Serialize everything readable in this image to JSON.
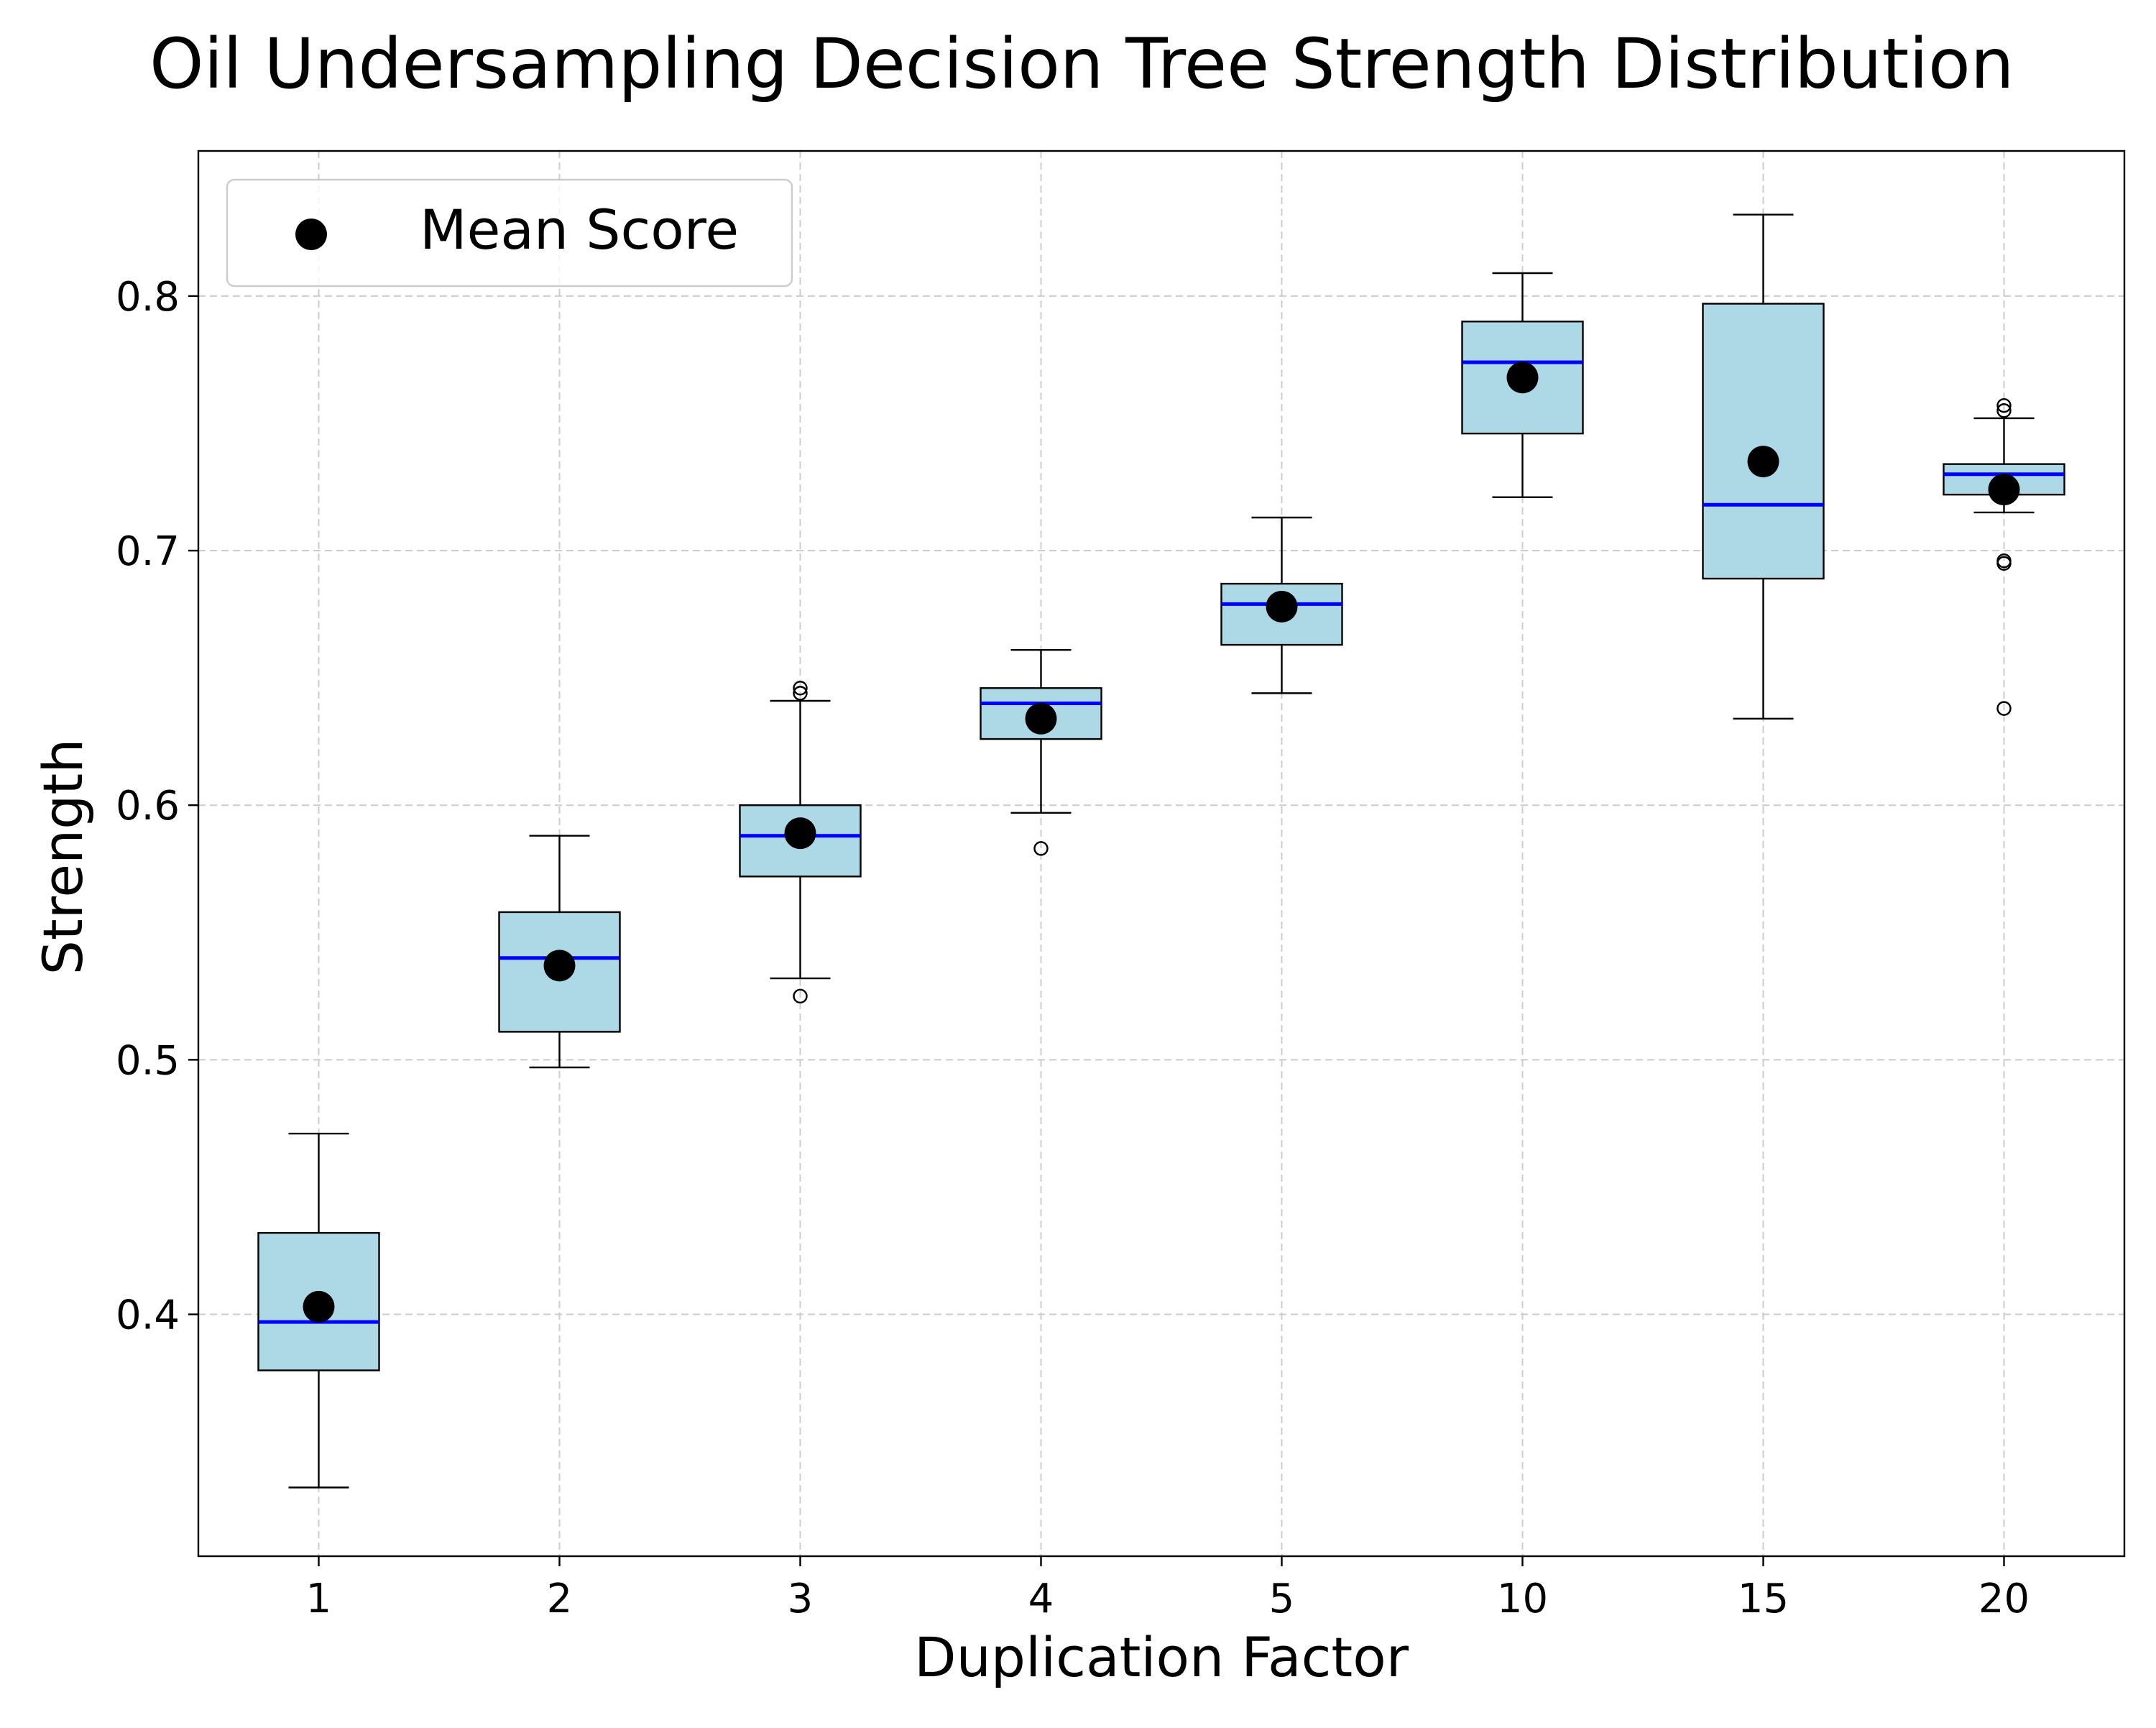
{
  "chart_data": {
    "type": "box",
    "title": "Oil Undersampling Decision Tree Strength Distribution",
    "xlabel": "Duplication Factor",
    "ylabel": "Strength",
    "categories": [
      "1",
      "2",
      "3",
      "4",
      "5",
      "10",
      "15",
      "20"
    ],
    "ylim": [
      0.305,
      0.857
    ],
    "yticks": [
      0.4,
      0.5,
      0.6,
      0.7,
      0.8
    ],
    "ytick_labels": [
      "0.4",
      "0.5",
      "0.6",
      "0.7",
      "0.8"
    ],
    "grid": true,
    "legend": {
      "position": "top-left",
      "entries": [
        "Mean Score"
      ]
    },
    "colors": {
      "box_fill": "#add8e6",
      "median": "#0000ff",
      "mean": "#000000",
      "grid": "#cccccc"
    },
    "boxes": [
      {
        "x": "1",
        "whisker_low": 0.332,
        "q1": 0.378,
        "median": 0.397,
        "q3": 0.432,
        "whisker_high": 0.471,
        "mean": 0.403,
        "outliers": []
      },
      {
        "x": "2",
        "whisker_low": 0.497,
        "q1": 0.511,
        "median": 0.54,
        "q3": 0.558,
        "whisker_high": 0.588,
        "mean": 0.537,
        "outliers": []
      },
      {
        "x": "3",
        "whisker_low": 0.532,
        "q1": 0.572,
        "median": 0.588,
        "q3": 0.6,
        "whisker_high": 0.641,
        "mean": 0.589,
        "outliers": [
          0.525,
          0.644,
          0.646
        ]
      },
      {
        "x": "4",
        "whisker_low": 0.597,
        "q1": 0.626,
        "median": 0.64,
        "q3": 0.646,
        "whisker_high": 0.661,
        "mean": 0.634,
        "outliers": [
          0.583
        ]
      },
      {
        "x": "5",
        "whisker_low": 0.644,
        "q1": 0.663,
        "median": 0.679,
        "q3": 0.687,
        "whisker_high": 0.713,
        "mean": 0.678,
        "outliers": []
      },
      {
        "x": "10",
        "whisker_low": 0.721,
        "q1": 0.746,
        "median": 0.774,
        "q3": 0.79,
        "whisker_high": 0.809,
        "mean": 0.768,
        "outliers": []
      },
      {
        "x": "15",
        "whisker_low": 0.634,
        "q1": 0.689,
        "median": 0.718,
        "q3": 0.797,
        "whisker_high": 0.832,
        "mean": 0.735,
        "outliers": []
      },
      {
        "x": "20",
        "whisker_low": 0.715,
        "q1": 0.722,
        "median": 0.73,
        "q3": 0.734,
        "whisker_high": 0.752,
        "mean": 0.724,
        "outliers": [
          0.638,
          0.695,
          0.696,
          0.755,
          0.757
        ]
      }
    ]
  }
}
